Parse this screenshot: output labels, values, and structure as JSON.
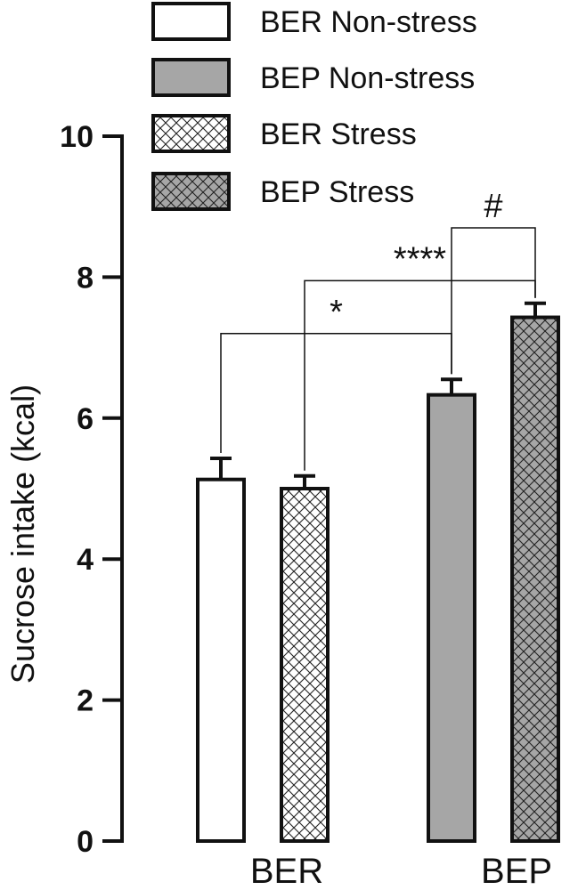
{
  "chart_data": {
    "type": "bar",
    "ylabel": "Sucrose intake (kcal)",
    "ylim": [
      0,
      10
    ],
    "yticks": [
      0,
      2,
      4,
      6,
      8,
      10
    ],
    "categories": [
      "BER",
      "BEP"
    ],
    "series": [
      {
        "name": "BER Non-stress",
        "fill": "white",
        "category": "BER",
        "value": 5.13,
        "error": 0.3
      },
      {
        "name": "BER Stress",
        "fill": "white-hatch",
        "category": "BER",
        "value": 5.0,
        "error": 0.18
      },
      {
        "name": "BEP Non-stress",
        "fill": "gray",
        "category": "BEP",
        "value": 6.33,
        "error": 0.22
      },
      {
        "name": "BEP Stress",
        "fill": "gray-hatch",
        "category": "BEP",
        "value": 7.43,
        "error": 0.2
      }
    ],
    "legend": [
      {
        "label": "BER Non-stress",
        "fill": "white"
      },
      {
        "label": "BEP Non-stress",
        "fill": "gray"
      },
      {
        "label": "BER Stress",
        "fill": "white-hatch"
      },
      {
        "label": "BEP Stress",
        "fill": "gray-hatch"
      }
    ],
    "significance": [
      {
        "label": "*",
        "from": "BER Non-stress",
        "to": "BEP Non-stress",
        "y": 7.2
      },
      {
        "label": "****",
        "from": "BER Stress",
        "to": "BEP Stress",
        "y": 7.95
      },
      {
        "label": "#",
        "from": "BEP Non-stress",
        "to": "BEP Stress",
        "y": 8.7
      }
    ],
    "colors": {
      "gray": "#a6a6a6",
      "white": "#ffffff",
      "stroke": "#111111"
    }
  }
}
